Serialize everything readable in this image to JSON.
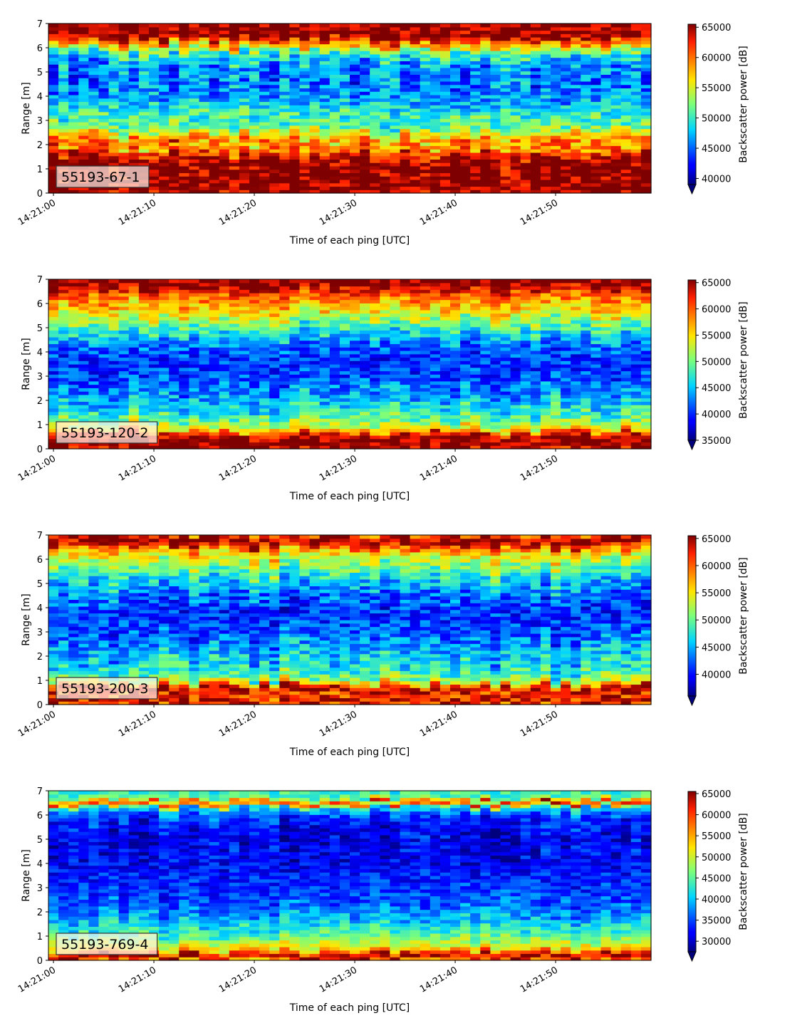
{
  "chart_data": [
    {
      "type": "heatmap",
      "panel_label": "55193-67-1",
      "xlabel": "Time of each ping [UTC]",
      "ylabel": "Range [m]",
      "x_tick_labels": [
        "14:21:00",
        "14:21:10",
        "14:21:20",
        "14:21:30",
        "14:21:40",
        "14:21:50"
      ],
      "y_tick_labels": [
        "0",
        "1",
        "2",
        "3",
        "4",
        "5",
        "6",
        "7"
      ],
      "xlim": [
        "14:20:59.5",
        "14:21:59.5"
      ],
      "ylim": [
        0,
        7
      ],
      "colorbar_label": "Backscatter power [dB]",
      "colorbar_ticks": [
        "40000",
        "45000",
        "50000",
        "55000",
        "60000",
        "65000"
      ],
      "colorbar_range": [
        39000,
        65500
      ],
      "colormap": "jet",
      "profile": {
        "range_m": [
          0,
          0.2,
          0.3,
          1.3,
          1.8,
          1.9,
          2.1,
          2.3,
          2.5,
          2.8,
          3.3,
          3.8,
          4.5,
          5.2,
          5.6,
          5.9,
          6.1,
          6.3,
          6.5,
          6.8,
          7.0
        ],
        "backscatter": [
          64000,
          65500,
          65500,
          65500,
          61000,
          57500,
          60000,
          58000,
          55000,
          51000,
          50500,
          47000,
          45500,
          46000,
          48500,
          52000,
          57000,
          61000,
          65500,
          65500,
          65500
        ]
      }
    },
    {
      "type": "heatmap",
      "panel_label": "55193-120-2",
      "xlabel": "Time of each ping [UTC]",
      "ylabel": "Range [m]",
      "x_tick_labels": [
        "14:21:00",
        "14:21:10",
        "14:21:20",
        "14:21:30",
        "14:21:40",
        "14:21:50"
      ],
      "y_tick_labels": [
        "0",
        "1",
        "2",
        "3",
        "4",
        "5",
        "6",
        "7"
      ],
      "xlim": [
        "14:20:59.5",
        "14:21:59.5"
      ],
      "ylim": [
        0,
        7
      ],
      "colorbar_label": "Backscatter power [dB]",
      "colorbar_ticks": [
        "35000",
        "40000",
        "45000",
        "50000",
        "55000",
        "60000",
        "65000"
      ],
      "colorbar_range": [
        35000,
        65500
      ],
      "colormap": "jet",
      "profile": {
        "range_m": [
          0,
          0.1,
          0.3,
          0.6,
          0.8,
          1.2,
          1.6,
          2.2,
          3.0,
          3.8,
          4.4,
          5.0,
          5.5,
          6.0,
          6.3,
          6.6,
          6.8,
          7.0
        ],
        "backscatter": [
          63000,
          65500,
          65500,
          63000,
          55000,
          50000,
          47000,
          44000,
          41000,
          40000,
          43000,
          48000,
          53000,
          57000,
          59000,
          63000,
          65500,
          65500
        ]
      }
    },
    {
      "type": "heatmap",
      "panel_label": "55193-200-3",
      "xlabel": "Time of each ping [UTC]",
      "ylabel": "Range [m]",
      "x_tick_labels": [
        "14:21:00",
        "14:21:10",
        "14:21:20",
        "14:21:30",
        "14:21:40",
        "14:21:50"
      ],
      "y_tick_labels": [
        "0",
        "1",
        "2",
        "3",
        "4",
        "5",
        "6",
        "7"
      ],
      "xlim": [
        "14:20:59.5",
        "14:21:59.5"
      ],
      "ylim": [
        0,
        7
      ],
      "colorbar_label": "Backscatter power [dB]",
      "colorbar_ticks": [
        "40000",
        "45000",
        "50000",
        "55000",
        "60000",
        "65000"
      ],
      "colorbar_range": [
        36000,
        65500
      ],
      "colormap": "jet",
      "profile": {
        "range_m": [
          0,
          0.1,
          0.2,
          0.4,
          0.6,
          0.8,
          0.9,
          1.1,
          1.5,
          2.2,
          3.0,
          3.8,
          4.5,
          5.2,
          5.8,
          6.3,
          6.6,
          6.9,
          7.0
        ],
        "backscatter": [
          60000,
          65500,
          63000,
          60000,
          65000,
          60000,
          54000,
          50000,
          47000,
          45000,
          42000,
          41000,
          43000,
          47000,
          52000,
          56000,
          63000,
          65500,
          58000
        ]
      }
    },
    {
      "type": "heatmap",
      "panel_label": "55193-769-4",
      "xlabel": "Time of each ping [UTC]",
      "ylabel": "Range [m]",
      "x_tick_labels": [
        "14:21:00",
        "14:21:10",
        "14:21:20",
        "14:21:30",
        "14:21:40",
        "14:21:50"
      ],
      "y_tick_labels": [
        "0",
        "1",
        "2",
        "3",
        "4",
        "5",
        "6",
        "7"
      ],
      "xlim": [
        "14:20:59.5",
        "14:21:59.5"
      ],
      "ylim": [
        0,
        7
      ],
      "colorbar_label": "Backscatter power [dB]",
      "colorbar_ticks": [
        "30000",
        "35000",
        "40000",
        "45000",
        "50000",
        "55000",
        "60000",
        "65000"
      ],
      "colorbar_range": [
        27500,
        65500
      ],
      "colormap": "jet",
      "profile": {
        "range_m": [
          0,
          0.1,
          0.2,
          0.3,
          0.5,
          0.8,
          1.1,
          1.6,
          2.2,
          3.0,
          4.0,
          5.0,
          5.8,
          6.3,
          6.5,
          6.7,
          7.0
        ],
        "backscatter": [
          55000,
          62000,
          65500,
          60000,
          52000,
          48000,
          44000,
          40000,
          36000,
          34000,
          32000,
          31500,
          33000,
          40000,
          62000,
          45000,
          43000
        ]
      }
    }
  ]
}
